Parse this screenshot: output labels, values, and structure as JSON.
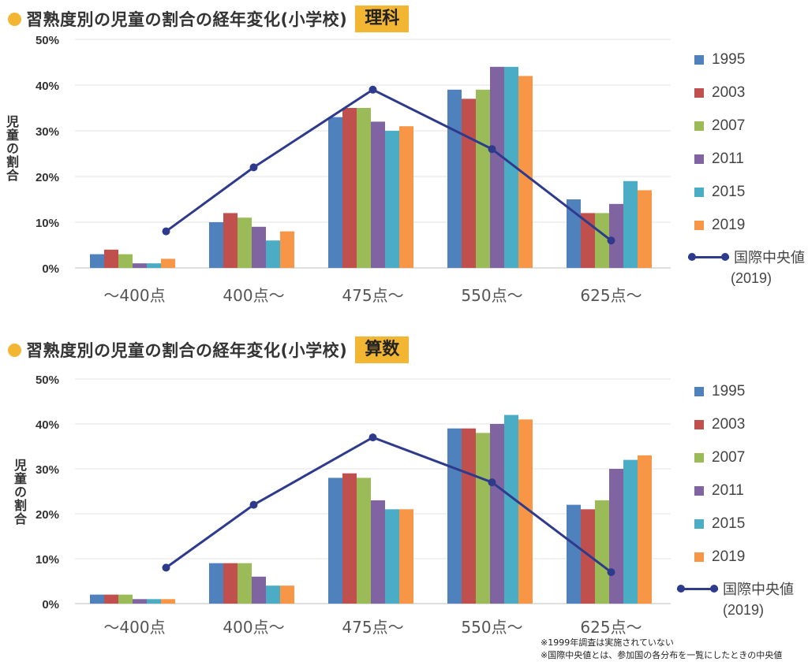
{
  "charts": [
    {
      "title": "習熟度別の児童の割合の経年変化(小学校)",
      "subject": "理科",
      "ylabel": "児童の割合",
      "median_label": "国際中央値",
      "median_year": "(2019)"
    },
    {
      "title": "習熟度別の児童の割合の経年変化(小学校)",
      "subject": "算数",
      "ylabel": "児童の割合",
      "median_label": "国際中央値",
      "median_year": "(2019)"
    }
  ],
  "footnotes": [
    "※1999年調査は実施されていない",
    "※国際中央値とは、参加国の各分布を一覧にしたときの中央値"
  ],
  "colors": {
    "1995": "#4f81bd",
    "2003": "#c0504d",
    "2007": "#9bbb59",
    "2011": "#8064a2",
    "2015": "#4bacc6",
    "2019": "#f79646",
    "median": "#2e3a8c",
    "accent": "#f2b632"
  },
  "chart_data": [
    {
      "type": "bar",
      "subject": "理科",
      "categories": [
        "〜400点",
        "400点〜",
        "475点〜",
        "550点〜",
        "625点〜"
      ],
      "ylim": [
        0,
        50
      ],
      "yticks": [
        "0%",
        "10%",
        "20%",
        "30%",
        "40%",
        "50%"
      ],
      "grid": true,
      "legend": "right",
      "series": [
        {
          "name": "1995",
          "values": [
            3,
            10,
            33,
            39,
            15
          ]
        },
        {
          "name": "2003",
          "values": [
            4,
            12,
            35,
            37,
            12
          ]
        },
        {
          "name": "2007",
          "values": [
            3,
            11,
            35,
            39,
            12
          ]
        },
        {
          "name": "2011",
          "values": [
            1,
            9,
            32,
            44,
            14
          ]
        },
        {
          "name": "2015",
          "values": [
            1,
            6,
            30,
            44,
            19
          ]
        },
        {
          "name": "2019",
          "values": [
            2,
            8,
            31,
            42,
            17
          ]
        }
      ],
      "line": {
        "name": "国際中央値(2019)",
        "values": [
          8,
          22,
          39,
          26,
          6
        ]
      }
    },
    {
      "type": "bar",
      "subject": "算数",
      "categories": [
        "〜400点",
        "400点〜",
        "475点〜",
        "550点〜",
        "625点〜"
      ],
      "ylim": [
        0,
        50
      ],
      "yticks": [
        "0%",
        "10%",
        "20%",
        "30%",
        "40%",
        "50%"
      ],
      "grid": true,
      "legend": "right",
      "series": [
        {
          "name": "1995",
          "values": [
            2,
            9,
            28,
            39,
            22
          ]
        },
        {
          "name": "2003",
          "values": [
            2,
            9,
            29,
            39,
            21
          ]
        },
        {
          "name": "2007",
          "values": [
            2,
            9,
            28,
            38,
            23
          ]
        },
        {
          "name": "2011",
          "values": [
            1,
            6,
            23,
            40,
            30
          ]
        },
        {
          "name": "2015",
          "values": [
            1,
            4,
            21,
            42,
            32
          ]
        },
        {
          "name": "2019",
          "values": [
            1,
            4,
            21,
            41,
            33
          ]
        }
      ],
      "line": {
        "name": "国際中央値(2019)",
        "values": [
          8,
          22,
          37,
          27,
          7
        ]
      }
    }
  ]
}
